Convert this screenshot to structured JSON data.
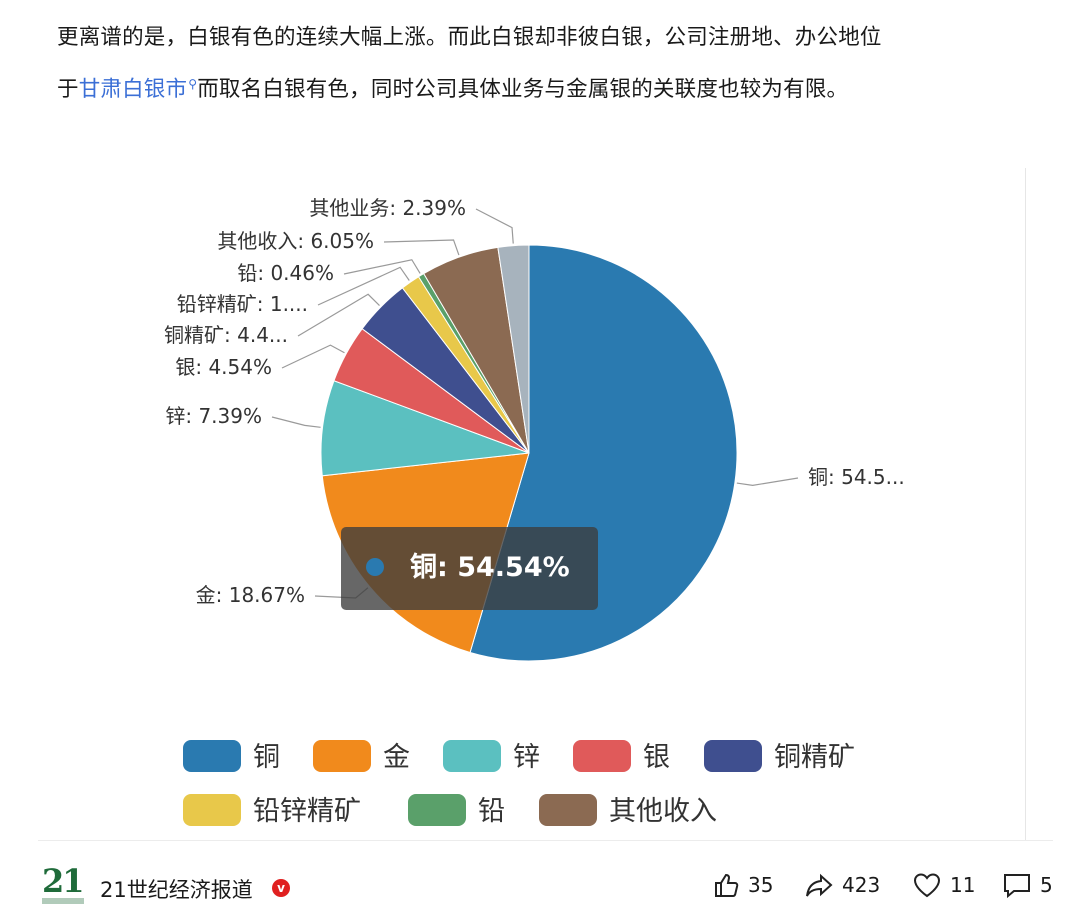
{
  "article": {
    "line1": "更离谱的是，白银有色的连续大幅上涨。而此白银却非彼白银，公司注册地、办公地位",
    "line2_prefix": "于",
    "line2_link": "甘肃白银市",
    "line2_suffix": "而取名白银有色，同时公司具体业务与金属银的关联度也较为有限。"
  },
  "chart_data": {
    "type": "pie",
    "slices": [
      {
        "name": "铜",
        "value": 54.54,
        "label": "铜: 54.5...",
        "color": "#2a7ab0"
      },
      {
        "name": "金",
        "value": 18.67,
        "label": "金: 18.67%",
        "color": "#f18a1c"
      },
      {
        "name": "锌",
        "value": 7.39,
        "label": "锌: 7.39%",
        "color": "#5bc0c0"
      },
      {
        "name": "银",
        "value": 4.54,
        "label": "银: 4.54%",
        "color": "#e05a5a"
      },
      {
        "name": "铜精矿",
        "value": 4.4,
        "label": "铜精矿: 4.4...",
        "color": "#3f4f8f"
      },
      {
        "name": "铅锌精矿",
        "value": 1.5,
        "label": "铅锌精矿: 1....",
        "color": "#e8c84a"
      },
      {
        "name": "铅",
        "value": 0.46,
        "label": "铅: 0.46%",
        "color": "#5aa06a"
      },
      {
        "name": "其他收入",
        "value": 6.05,
        "label": "其他收入: 6.05%",
        "color": "#8b6a52"
      },
      {
        "name": "其他业务",
        "value": 2.39,
        "label": "其他业务: 2.39%",
        "color": "#a7b3bd"
      }
    ],
    "tooltip": {
      "name": "铜",
      "value": "54.54%"
    },
    "legend": [
      "铜",
      "金",
      "锌",
      "银",
      "铜精矿",
      "铅锌精矿",
      "铅",
      "其他收入"
    ],
    "legend_position": "bottom"
  },
  "footer": {
    "logo_text": "21",
    "author": "21世纪经济报道",
    "verified_mark": "v",
    "likes": "35",
    "shares": "423",
    "favorites": "11",
    "comments": "5"
  },
  "icons": [
    "thumbs-up-icon",
    "share-icon",
    "heart-icon",
    "comment-icon",
    "search-icon"
  ]
}
